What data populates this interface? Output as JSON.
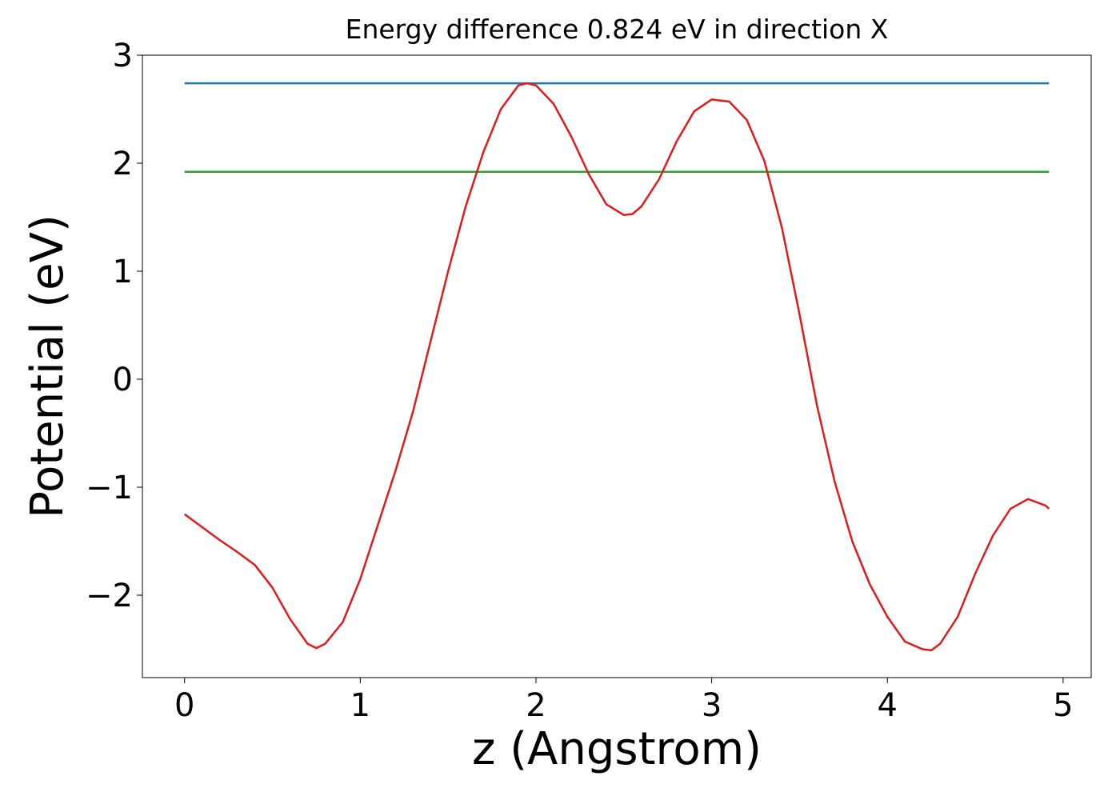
{
  "chart_data": {
    "type": "line",
    "title": "Energy difference 0.824 eV in direction X",
    "x_label": "z (Angstrom)",
    "y_label": "Potential (eV)",
    "xlim": [
      -0.24,
      5.16
    ],
    "ylim": [
      -2.763,
      3.0
    ],
    "xticks": [
      0,
      1,
      2,
      3,
      4,
      5
    ],
    "yticks": [
      {
        "value": -2,
        "label": "−2"
      },
      {
        "value": -1,
        "label": "−1"
      },
      0,
      1,
      2,
      3
    ],
    "series": [
      {
        "color": "#1f77b4",
        "x": [
          0,
          4.92
        ],
        "values": [
          2.74,
          2.74
        ]
      },
      {
        "color": "#2ca02c",
        "x": [
          0,
          4.92
        ],
        "values": [
          1.92,
          1.92
        ]
      },
      {
        "color": "#e31a1c",
        "x": [
          0,
          0.1,
          0.2,
          0.3,
          0.4,
          0.5,
          0.6,
          0.7,
          0.75,
          0.8,
          0.9,
          1.0,
          1.1,
          1.2,
          1.3,
          1.4,
          1.5,
          1.6,
          1.7,
          1.8,
          1.9,
          1.95,
          2.0,
          2.1,
          2.2,
          2.3,
          2.4,
          2.5,
          2.55,
          2.6,
          2.7,
          2.8,
          2.9,
          3.0,
          3.1,
          3.2,
          3.3,
          3.4,
          3.5,
          3.6,
          3.7,
          3.8,
          3.9,
          4.0,
          4.1,
          4.2,
          4.25,
          4.3,
          4.4,
          4.5,
          4.6,
          4.7,
          4.8,
          4.9,
          4.92
        ],
        "values": [
          -1.25,
          -1.37,
          -1.49,
          -1.6,
          -1.72,
          -1.93,
          -2.22,
          -2.45,
          -2.49,
          -2.45,
          -2.25,
          -1.85,
          -1.35,
          -0.85,
          -0.3,
          0.35,
          1.0,
          1.6,
          2.1,
          2.5,
          2.72,
          2.74,
          2.72,
          2.55,
          2.25,
          1.9,
          1.62,
          1.52,
          1.53,
          1.6,
          1.85,
          2.2,
          2.48,
          2.59,
          2.57,
          2.4,
          2.02,
          1.4,
          0.6,
          -0.25,
          -0.95,
          -1.5,
          -1.9,
          -2.2,
          -2.43,
          -2.5,
          -2.51,
          -2.45,
          -2.2,
          -1.8,
          -1.45,
          -1.2,
          -1.11,
          -1.17,
          -1.2
        ]
      }
    ]
  }
}
